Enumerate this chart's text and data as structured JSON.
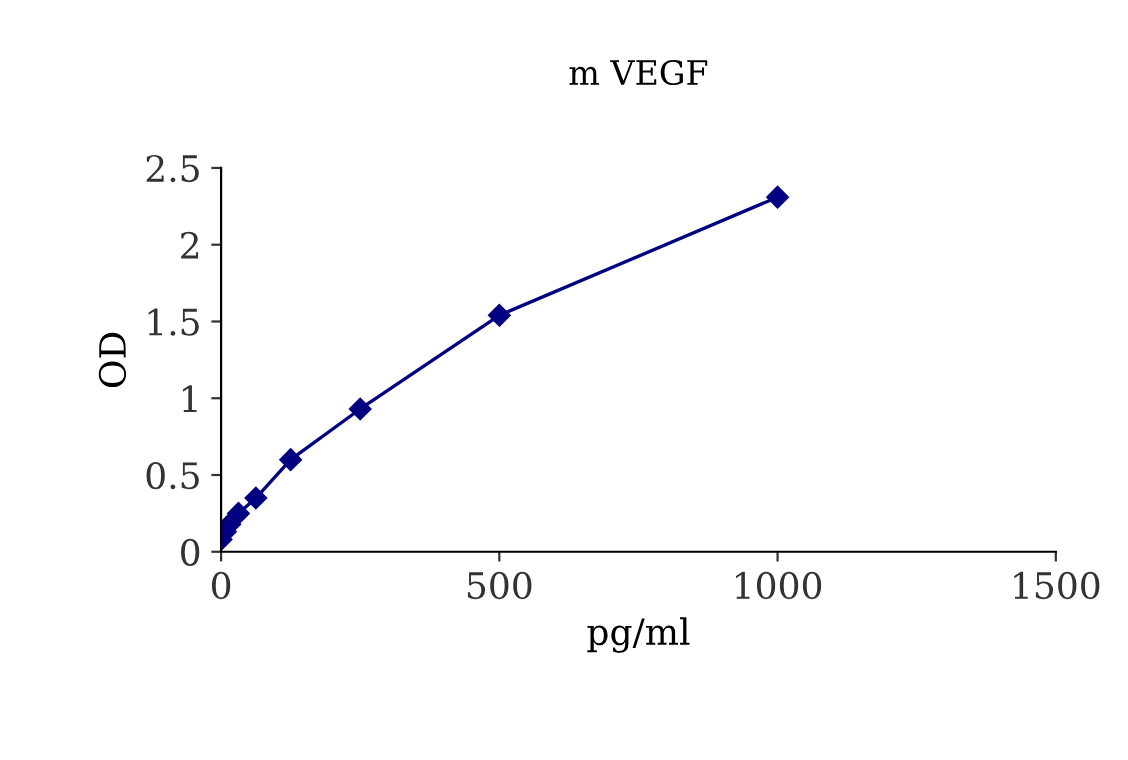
{
  "chart_data": {
    "type": "line",
    "title": "m VEGF",
    "xlabel": "pg/ml",
    "ylabel": "OD",
    "x": [
      0,
      7.8,
      15.6,
      31.25,
      62.5,
      125,
      250,
      500,
      1000
    ],
    "series": [
      {
        "color": "#000080",
        "values": [
          0.08,
          0.13,
          0.18,
          0.25,
          0.35,
          0.6,
          0.93,
          1.54,
          2.31
        ]
      }
    ],
    "xlim": [
      0,
      1500
    ],
    "xticks": [
      0,
      500,
      1000,
      1500
    ],
    "ylim": [
      0,
      2.5
    ],
    "yticks": [
      0,
      {
        "value": 0.5,
        "label": "0.5"
      },
      1,
      {
        "value": 1.5,
        "label": "1.5"
      },
      2,
      {
        "value": 2.5,
        "label": "2.5"
      }
    ],
    "grid": false,
    "legend": false,
    "marker": "diamond",
    "line_style": "solid"
  }
}
